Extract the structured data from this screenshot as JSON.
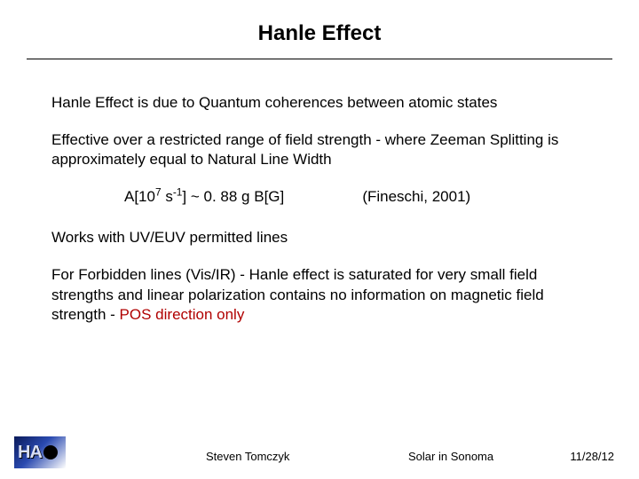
{
  "title": "Hanle Effect",
  "paragraphs": {
    "p1": "Hanle Effect is due to Quantum coherences between atomic states",
    "p2": "Effective over a restricted range of field strength - where Zeeman Splitting is approximately equal to Natural Line Width",
    "equation_prefix": "A[10",
    "equation_exp1": "7",
    "equation_mid": " s",
    "equation_exp2": "-1",
    "equation_suffix": "] ~ 0. 88 g B[G]",
    "equation_ref": "(Fineschi, 2001)",
    "p3": "Works with UV/EUV permitted lines",
    "p4a": "For Forbidden lines (Vis/IR) - Hanle effect is saturated for very small field strengths and linear polarization contains no information on magnetic field strength - ",
    "p4b_pos": "POS direction only"
  },
  "footer": {
    "author": "Steven Tomczyk",
    "conference": "Solar in Sonoma",
    "date": "11/28/12"
  },
  "logo": {
    "letter1": "H",
    "letter2": "A"
  },
  "colors": {
    "text": "#000000",
    "background": "#ffffff",
    "pos_highlight": "#b00000",
    "logo_grad_start": "#0a1a5a",
    "logo_grad_end": "#ffffff"
  }
}
